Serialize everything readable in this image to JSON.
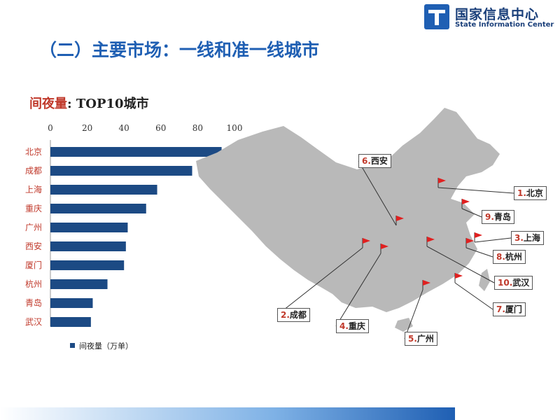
{
  "logo": {
    "name": "国家信息中心",
    "english": "State Information Center"
  },
  "slide_title": "（二）主要市场：一线和准一线城市",
  "chart_title": {
    "highlight": "间夜量",
    "rest": ": TOP10城市"
  },
  "chart_data": {
    "type": "bar",
    "orientation": "horizontal",
    "title": "间夜量: TOP10城市",
    "categories": [
      "北京",
      "成都",
      "上海",
      "重庆",
      "广州",
      "西安",
      "厦门",
      "杭州",
      "青岛",
      "武汉"
    ],
    "series": [
      {
        "name": "间夜量（万单）",
        "values": [
          93,
          77,
          58,
          52,
          42,
          41,
          40,
          31,
          23,
          22
        ]
      }
    ],
    "xlim": [
      0,
      100
    ],
    "xticks": [
      0,
      20,
      40,
      60,
      80,
      100
    ],
    "axis_position": "top",
    "grid": false,
    "legend": "bottom-left",
    "bar_color": "#1c4a84"
  },
  "legend": {
    "label": "间夜量（万单）"
  },
  "map": {
    "callouts": [
      {
        "num": "1.",
        "city": "北京"
      },
      {
        "num": "2.",
        "city": "成都"
      },
      {
        "num": "3.",
        "city": "上海"
      },
      {
        "num": "4.",
        "city": "重庆"
      },
      {
        "num": "5.",
        "city": "广州"
      },
      {
        "num": "6.",
        "city": "西安"
      },
      {
        "num": "7.",
        "city": "厦门"
      },
      {
        "num": "8.",
        "city": "杭州"
      },
      {
        "num": "9.",
        "city": "青岛"
      },
      {
        "num": "10.",
        "city": "武汉"
      }
    ],
    "map_color": "#b9b9b9",
    "flag_color": "#e02020"
  }
}
